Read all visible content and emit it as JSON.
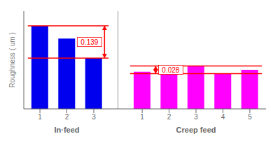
{
  "chart_data": {
    "type": "bar",
    "ylabel": "Roughness ( um )",
    "ylim": [
      0,
      1.0
    ],
    "yticks": [],
    "grid": false,
    "tick_labels": "x",
    "groups": [
      {
        "label": "In·feed",
        "categories": [
          "1",
          "2",
          "3"
        ],
        "values": [
          0.85,
          0.72,
          0.52
        ],
        "color": "#0000ee",
        "annotation": {
          "text": "0.139",
          "top": 0.85,
          "bottom": 0.52,
          "color": "#ff0000"
        }
      },
      {
        "label": "Creep feed",
        "categories": [
          "1",
          "2",
          "3",
          "4",
          "5"
        ],
        "values": [
          0.38,
          0.37,
          0.44,
          0.36,
          0.4
        ],
        "color": "#ff00ff",
        "annotation": {
          "text": "0.028",
          "top": 0.44,
          "bottom": 0.36,
          "color": "#ff0000"
        }
      }
    ]
  }
}
